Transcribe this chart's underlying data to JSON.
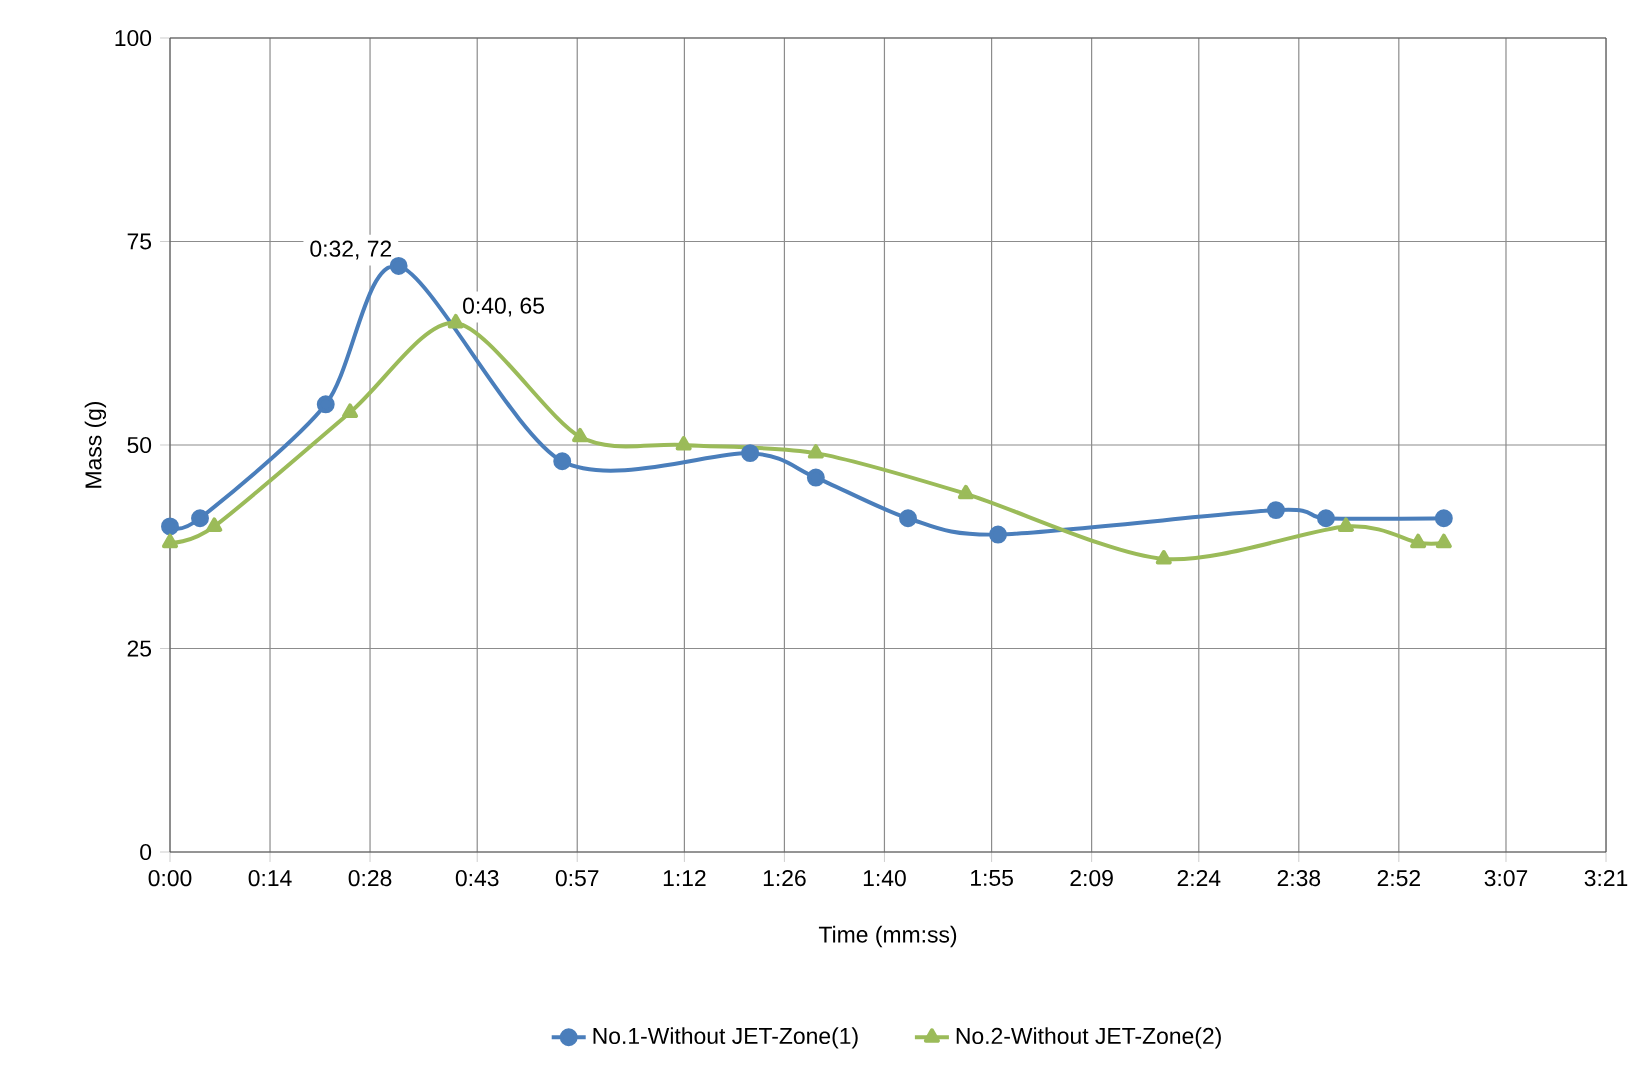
{
  "chart_data": {
    "type": "line",
    "xlabel": "Time (mm:ss)",
    "ylabel": "Mass (g)",
    "xlim": [
      0,
      201
    ],
    "ylim": [
      0,
      100
    ],
    "xticks": [
      {
        "value": 0,
        "label": "0:00"
      },
      {
        "value": 14,
        "label": "0:14"
      },
      {
        "value": 28,
        "label": "0:28"
      },
      {
        "value": 43,
        "label": "0:43"
      },
      {
        "value": 57,
        "label": "0:57"
      },
      {
        "value": 72,
        "label": "1:12"
      },
      {
        "value": 86,
        "label": "1:26"
      },
      {
        "value": 100,
        "label": "1:40"
      },
      {
        "value": 115,
        "label": "1:55"
      },
      {
        "value": 129,
        "label": "2:09"
      },
      {
        "value": 144,
        "label": "2:24"
      },
      {
        "value": 158,
        "label": "2:38"
      },
      {
        "value": 172,
        "label": "2:52"
      },
      {
        "value": 187,
        "label": "3:07"
      },
      {
        "value": 201,
        "label": "3:21"
      }
    ],
    "yticks": [
      0,
      25,
      50,
      75,
      100
    ],
    "grid": true,
    "legend": "bottom",
    "series": [
      {
        "name": "No.1-Without JET-Zone(1)",
        "color": "#4a7ebb",
        "marker": "circle",
        "x": [
          0,
          4.2,
          21.8,
          32,
          54.9,
          81.2,
          90.4,
          103.3,
          115.9,
          154.8,
          161.8,
          178.3
        ],
        "values": [
          40,
          41,
          55,
          72,
          48,
          49,
          46,
          41,
          39,
          42,
          41,
          41
        ]
      },
      {
        "name": "No.2-Without JET-Zone(2)",
        "color": "#9bbb59",
        "marker": "triangle",
        "x": [
          0,
          6.2,
          25.2,
          40,
          57.4,
          71.9,
          90.4,
          111.4,
          139.1,
          164.6,
          174.7,
          178.3
        ],
        "values": [
          38,
          40,
          54,
          65,
          51,
          50,
          49,
          44,
          36,
          40,
          38,
          38
        ]
      }
    ],
    "annotations": [
      {
        "text": "0:32, 72",
        "x": 32,
        "y": 72
      },
      {
        "text": "0:40, 65",
        "x": 40,
        "y": 65
      }
    ]
  }
}
